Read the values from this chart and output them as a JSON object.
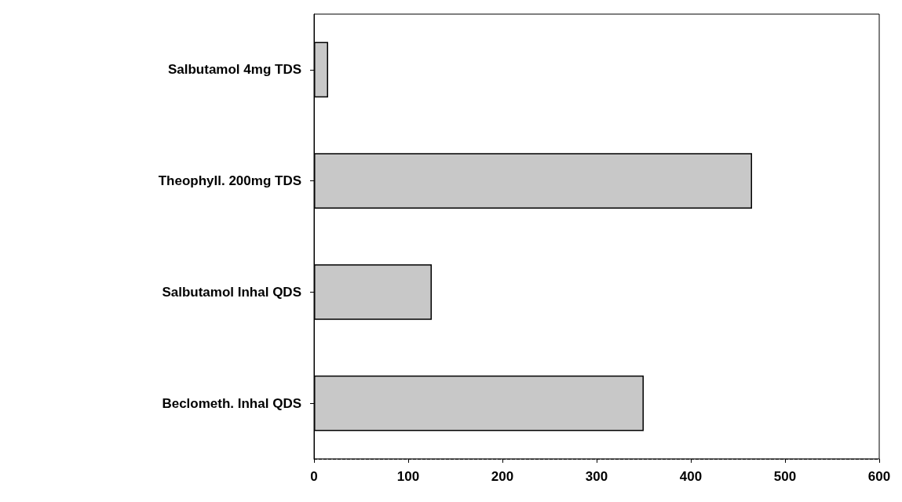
{
  "chart_data": {
    "type": "bar",
    "orientation": "horizontal",
    "categories": [
      "Salbutamol 4mg TDS",
      "Theophyll. 200mg TDS",
      "Salbutamol Inhal QDS",
      "Beclometh. Inhal QDS"
    ],
    "values": [
      15,
      465,
      125,
      350
    ],
    "color": "#c8c8c8",
    "xlim": [
      0,
      600
    ],
    "xticks": [
      0,
      100,
      200,
      300,
      400,
      500,
      600
    ],
    "grid": false
  }
}
